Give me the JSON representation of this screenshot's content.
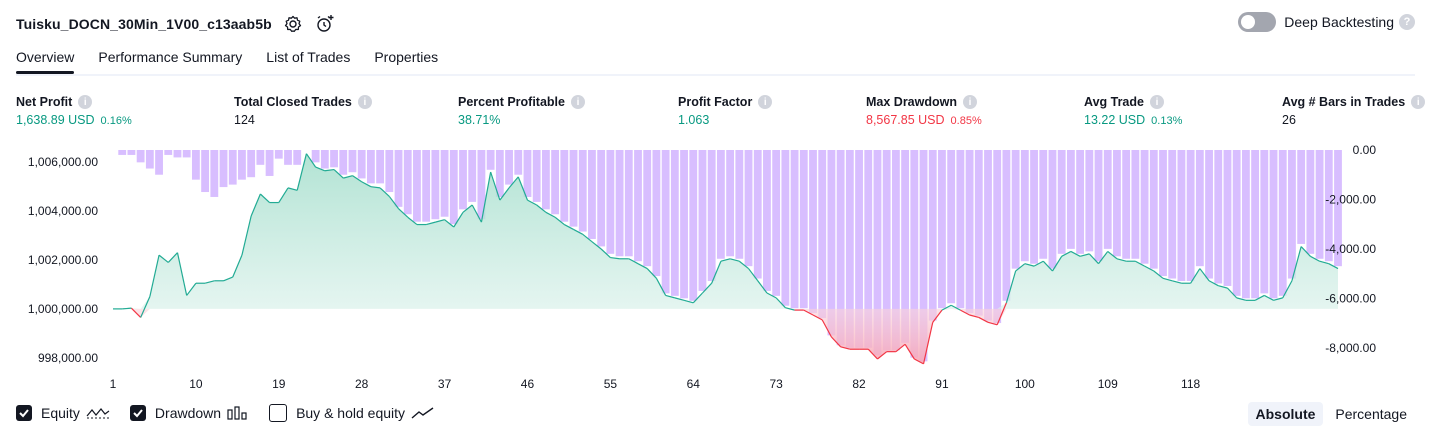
{
  "header": {
    "strategy_name": "Tuisku_DOCN_30Min_1V00_c13aab5b",
    "settings_icon": "gear-icon",
    "alert_icon": "add-alert-icon"
  },
  "deep_backtesting": {
    "label": "Deep Backtesting",
    "enabled": false,
    "help": "?"
  },
  "tabs": [
    {
      "label": "Overview",
      "active": true
    },
    {
      "label": "Performance Summary",
      "active": false
    },
    {
      "label": "List of Trades",
      "active": false
    },
    {
      "label": "Properties",
      "active": false
    }
  ],
  "metrics": [
    {
      "label": "Net Profit",
      "value": "1,638.89 USD",
      "pct": "0.16%",
      "color": "green"
    },
    {
      "label": "Total Closed Trades",
      "value": "124",
      "pct": "",
      "color": "dark"
    },
    {
      "label": "Percent Profitable",
      "value": "38.71%",
      "pct": "",
      "color": "green"
    },
    {
      "label": "Profit Factor",
      "value": "1.063",
      "pct": "",
      "color": "green"
    },
    {
      "label": "Max Drawdown",
      "value": "8,567.85 USD",
      "pct": "0.85%",
      "color": "red"
    },
    {
      "label": "Avg Trade",
      "value": "13.22 USD",
      "pct": "0.13%",
      "color": "green"
    },
    {
      "label": "Avg # Bars in Trades",
      "value": "26",
      "pct": "",
      "color": "dark"
    }
  ],
  "legend": {
    "equity": {
      "label": "Equity",
      "checked": true
    },
    "drawdown": {
      "label": "Drawdown",
      "checked": true
    },
    "buy_hold": {
      "label": "Buy & hold equity",
      "checked": false
    }
  },
  "scale": {
    "absolute": "Absolute",
    "percentage": "Percentage",
    "selected": "Absolute"
  },
  "colors": {
    "profit": "#089981",
    "loss": "#f23645",
    "drawdown_bar": "#d1b3ff",
    "equity_line": "#22ab94",
    "equity_fill": "#d9f1ea",
    "loss_fill": "#f7a6b5"
  },
  "chart_data": {
    "type": "area",
    "x_ticks": [
      1,
      10,
      19,
      28,
      37,
      46,
      55,
      64,
      73,
      82,
      91,
      100,
      109,
      118
    ],
    "left_axis": {
      "ticks": [
        "1,006,000.00",
        "1,004,000.00",
        "1,002,000.00",
        "1,000,000.00",
        "998,000.00"
      ],
      "values": [
        1006000,
        1004000,
        1002000,
        1000000,
        998000
      ],
      "ylim": [
        997500,
        1006500
      ]
    },
    "right_axis": {
      "ticks": [
        "0.00",
        "-2,000.00",
        "-4,000.00",
        "-6,000.00",
        "-8,000.00"
      ],
      "values": [
        0,
        -2000,
        -4000,
        -6000,
        -8000
      ],
      "ylim": [
        -8900,
        0
      ]
    },
    "baseline": 1000000,
    "series": [
      {
        "name": "Equity",
        "values": [
          1000000,
          1000000,
          1000030,
          999650,
          1000500,
          1002200,
          1001900,
          1002300,
          1000550,
          1001050,
          1001050,
          1001150,
          1001150,
          1001300,
          1002200,
          1003800,
          1004700,
          1004350,
          1004350,
          1004950,
          1004850,
          1006350,
          1005800,
          1005650,
          1005700,
          1005350,
          1005450,
          1005200,
          1005000,
          1004950,
          1004600,
          1004100,
          1003750,
          1003450,
          1003450,
          1003550,
          1003650,
          1003350,
          1003950,
          1004250,
          1003550,
          1005600,
          1004450,
          1004950,
          1005400,
          1004450,
          1004250,
          1003950,
          1003750,
          1003450,
          1003250,
          1003050,
          1002750,
          1002450,
          1002100,
          1002050,
          1002050,
          1001850,
          1001650,
          1001250,
          1000550,
          1000450,
          1000350,
          1000250,
          1000650,
          1001050,
          1001950,
          1002050,
          1001950,
          1001650,
          1001150,
          1000650,
          1000450,
          1000050,
          999950,
          999950,
          999750,
          999550,
          998850,
          998450,
          998350,
          998350,
          998350,
          997950,
          998250,
          998250,
          998550,
          997950,
          997750,
          999450,
          999950,
          1000150,
          999950,
          999750,
          999650,
          999450,
          999350,
          1000250,
          1001550,
          1001850,
          1001750,
          1001950,
          1001550,
          1002150,
          1002350,
          1002150,
          1002250,
          1001850,
          1002350,
          1002050,
          1001950,
          1001950,
          1001750,
          1001550,
          1001250,
          1001150,
          1001050,
          1001050,
          1001650,
          1001150,
          1000950,
          1000850,
          1000450,
          1000350,
          1000350,
          1000550,
          1000350,
          1000450,
          1001150,
          1002550,
          1002150,
          1001950,
          1001850,
          1001650
        ]
      },
      {
        "name": "Drawdown",
        "values": [
          0,
          -200,
          -200,
          -500,
          -750,
          -1000,
          -200,
          -300,
          -300,
          -1200,
          -1700,
          -1900,
          -1500,
          -1400,
          -1200,
          -1100,
          -600,
          -1050,
          -350,
          -600,
          -600,
          0,
          -500,
          -750,
          -700,
          -1000,
          -900,
          -1150,
          -1350,
          -1350,
          -1700,
          -2300,
          -2600,
          -2900,
          -2900,
          -2800,
          -2700,
          -3000,
          -2400,
          -2100,
          -2800,
          -800,
          -1900,
          -1400,
          -1000,
          -1900,
          -2100,
          -2400,
          -2600,
          -2900,
          -3100,
          -3300,
          -3600,
          -3900,
          -4200,
          -4300,
          -4300,
          -4500,
          -4700,
          -5100,
          -5800,
          -5900,
          -6000,
          -6100,
          -5700,
          -5300,
          -4400,
          -4300,
          -4400,
          -4700,
          -5200,
          -5700,
          -5900,
          -6300,
          -6400,
          -6400,
          -6600,
          -6800,
          -7500,
          -7900,
          -8000,
          -8000,
          -8000,
          -8300,
          -8100,
          -8100,
          -7800,
          -8400,
          -8550,
          -6900,
          -6400,
          -6200,
          -6400,
          -6600,
          -6700,
          -6900,
          -7000,
          -6100,
          -4800,
          -4500,
          -4600,
          -4400,
          -4800,
          -4200,
          -4000,
          -4200,
          -4100,
          -4500,
          -4000,
          -4300,
          -4400,
          -4400,
          -4600,
          -4800,
          -5100,
          -5200,
          -5300,
          -5300,
          -4700,
          -5200,
          -5400,
          -5500,
          -5900,
          -6000,
          -6000,
          -5800,
          -6000,
          -5900,
          -5200,
          -3800,
          -4200,
          -4400,
          -4500,
          -4700
        ]
      }
    ]
  }
}
